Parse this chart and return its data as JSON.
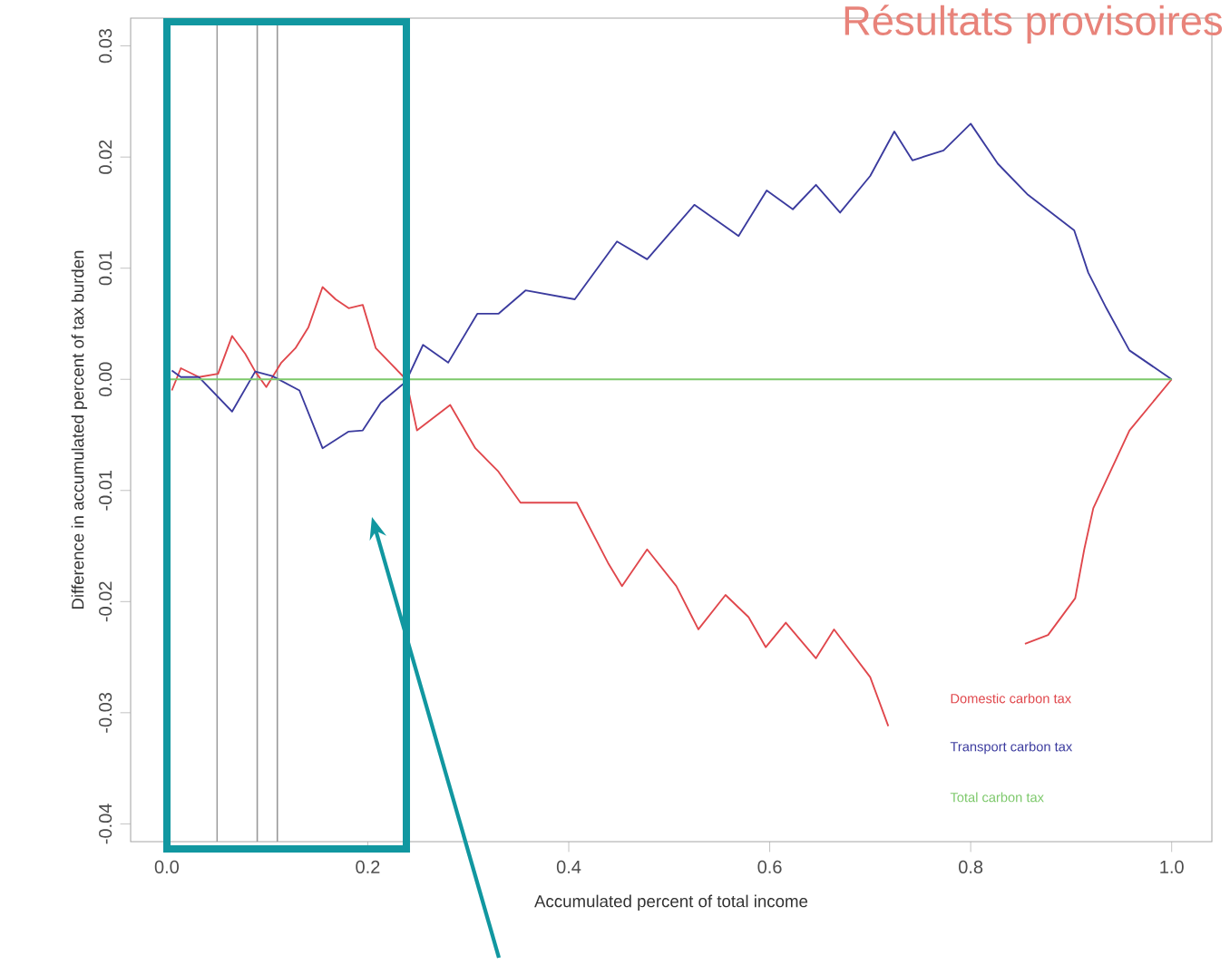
{
  "chart_data": {
    "type": "line",
    "xlabel": "Accumulated percent of total income",
    "ylabel": "Difference in accumulated percent of tax burden",
    "annotations": [
      "Résultats provisoires"
    ],
    "xlim": [
      -0.036,
      1.04
    ],
    "ylim": [
      -0.0416,
      0.0325
    ],
    "xticks": [
      {
        "value": 0,
        "label": "0.0"
      },
      0.2,
      0.4,
      0.6,
      0.8,
      {
        "value": 1,
        "label": "1.0"
      }
    ],
    "yticks": [
      -0.04,
      -0.03,
      -0.02,
      -0.01,
      {
        "value": 0,
        "label": "0.00"
      },
      0.01,
      0.02,
      0.03
    ],
    "legend": "bottom right",
    "marker": "none",
    "line_style": "solid",
    "grid": false,
    "ref_lines": [
      {
        "axis": "x",
        "value": 0.05,
        "color": "#999999"
      },
      {
        "axis": "x",
        "value": 0.09,
        "color": "#999999"
      },
      {
        "axis": "x",
        "value": 0.11,
        "color": "#999999"
      }
    ],
    "series": [
      {
        "name": "Domestic carbon tax",
        "color": "#e0474c",
        "x": [
          0.005,
          0.014,
          0.032,
          0.051,
          0.065,
          0.078,
          0.088,
          0.099,
          0.114,
          0.128,
          0.141,
          0.155,
          0.168,
          0.181,
          0.195,
          0.208,
          0.222,
          0.238,
          0.249,
          0.282,
          0.307,
          0.33,
          0.352,
          0.408,
          0.439,
          0.453,
          0.478,
          0.507,
          0.529,
          0.556,
          0.579,
          0.596,
          0.616,
          0.646,
          0.664,
          0.7,
          0.718,
          0.79,
          0.854,
          0.877,
          0.904,
          0.913,
          0.922,
          0.939,
          0.958,
          1.0
        ],
        "values": [
          -0.001,
          0.001,
          0.0002,
          0.0005,
          0.0039,
          0.0023,
          0.0007,
          -0.0007,
          0.0015,
          0.0028,
          0.0047,
          0.0083,
          0.0072,
          0.0064,
          0.0067,
          0.0028,
          0.0015,
          0,
          -0.0046,
          -0.0023,
          -0.0062,
          -0.0083,
          -0.0111,
          -0.0111,
          -0.0165,
          -0.0186,
          -0.0153,
          -0.0186,
          -0.0225,
          -0.0194,
          -0.0214,
          -0.0241,
          -0.0219,
          -0.0251,
          -0.0225,
          -0.0268,
          -0.0312,
          null,
          -0.0238,
          -0.023,
          -0.0197,
          -0.0153,
          -0.0116,
          -0.0083,
          -0.0046,
          0
        ]
      },
      {
        "name": "Transport carbon tax",
        "color": "#3b3b9e",
        "x": [
          0.005,
          0.014,
          0.032,
          0.065,
          0.088,
          0.105,
          0.132,
          0.155,
          0.181,
          0.195,
          0.213,
          0.238,
          0.255,
          0.28,
          0.309,
          0.33,
          0.357,
          0.406,
          0.448,
          0.478,
          0.525,
          0.569,
          0.597,
          0.623,
          0.646,
          0.67,
          0.7,
          0.724,
          0.742,
          0.773,
          0.8,
          0.827,
          0.857,
          0.903,
          0.917,
          0.935,
          0.958,
          1.0
        ],
        "values": [
          0.0008,
          0.0002,
          0.0002,
          -0.0029,
          0.0007,
          0.0003,
          -0.001,
          -0.0062,
          -0.0047,
          -0.0046,
          -0.0021,
          -0.0002,
          0.0031,
          0.0015,
          0.0059,
          0.0059,
          0.008,
          0.0072,
          0.0124,
          0.0108,
          0.0157,
          0.0129,
          0.017,
          0.0153,
          0.0175,
          0.015,
          0.0183,
          0.0223,
          0.0197,
          0.0206,
          0.023,
          0.0194,
          0.0166,
          0.0134,
          0.0096,
          0.0064,
          0.0026,
          0
        ]
      },
      {
        "name": "Total carbon tax",
        "color": "#7cc86a",
        "x": [
          0,
          1
        ],
        "values": [
          0,
          0
        ]
      }
    ]
  }
}
